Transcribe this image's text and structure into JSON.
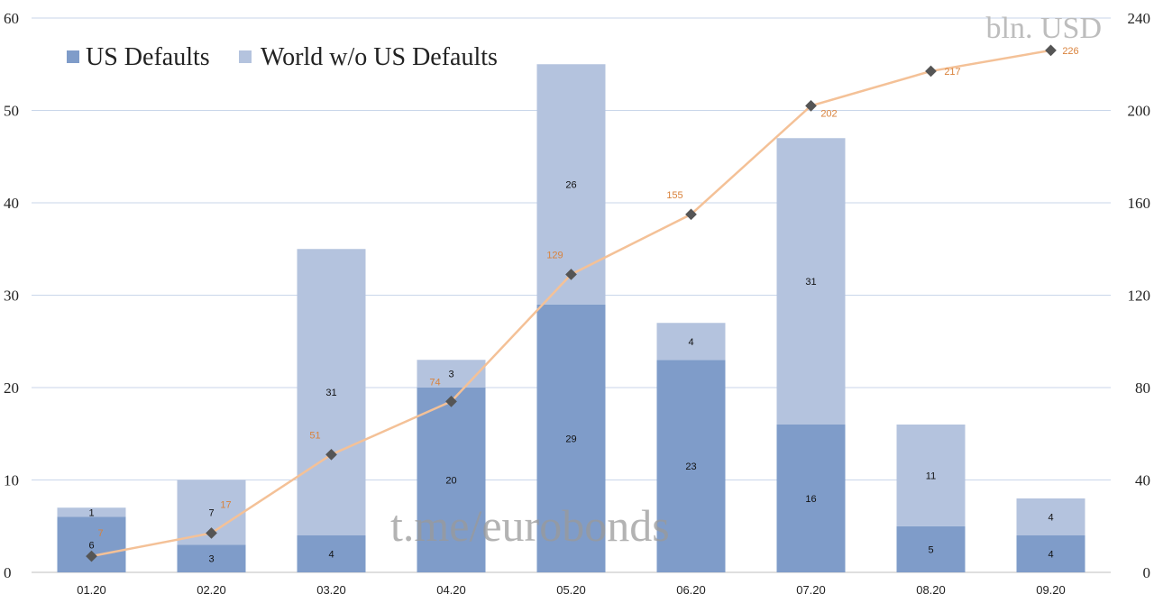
{
  "chart_data": {
    "type": "bar",
    "stacked": true,
    "categories": [
      "01.20",
      "02.20",
      "03.20",
      "04.20",
      "05.20",
      "06.20",
      "07.20",
      "08.20",
      "09.20"
    ],
    "series": [
      {
        "name": "US Defaults",
        "values": [
          6,
          3,
          4,
          20,
          29,
          23,
          16,
          5,
          4
        ],
        "color": "#7f9cc9"
      },
      {
        "name": "World w/o US Defaults",
        "values": [
          1,
          7,
          31,
          3,
          26,
          4,
          31,
          11,
          4
        ],
        "color": "#b4c3de"
      }
    ],
    "line_series": {
      "values": [
        7,
        17,
        51,
        74,
        129,
        155,
        202,
        217,
        226
      ],
      "axis": "right",
      "color": "#f4c197",
      "marker_color": "#555555",
      "label_color": "#d9823b"
    },
    "ylim_left": [
      0,
      60
    ],
    "yticks_left": [
      "0",
      "10",
      "20",
      "30",
      "40",
      "50",
      "60"
    ],
    "ylim_right": [
      0,
      240
    ],
    "yticks_right": [
      "0",
      "40",
      "80",
      "120",
      "160",
      "200",
      "240"
    ],
    "unit_label": "bln. USD",
    "watermark": "t.me/eurobonds",
    "legend_position": "top-left",
    "grid": true
  }
}
